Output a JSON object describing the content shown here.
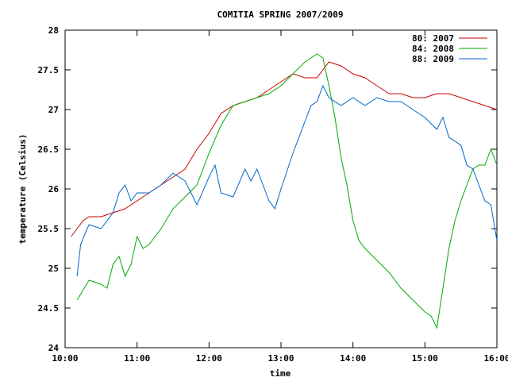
{
  "chart_data": {
    "type": "line",
    "title": "COMITIA SPRING 2007/2009",
    "xlabel": "time",
    "ylabel": "temperature (Celsius)",
    "xlim": [
      "10:00",
      "16:00"
    ],
    "ylim": [
      24,
      28
    ],
    "x_ticks": [
      "10:00",
      "11:00",
      "12:00",
      "13:00",
      "14:00",
      "15:00",
      "16:00"
    ],
    "y_ticks": [
      "24",
      "24.5",
      "25",
      "25.5",
      "26",
      "26.5",
      "27",
      "27.5",
      "28"
    ],
    "grid": false,
    "legend_position": "top-right",
    "series": [
      {
        "name": "80: 2007",
        "color": "#cc0000",
        "points": [
          [
            "10:05",
            25.4
          ],
          [
            "10:10",
            25.5
          ],
          [
            "10:15",
            25.6
          ],
          [
            "10:20",
            25.65
          ],
          [
            "10:30",
            25.65
          ],
          [
            "10:40",
            25.7
          ],
          [
            "10:50",
            25.75
          ],
          [
            "11:00",
            25.85
          ],
          [
            "11:10",
            25.95
          ],
          [
            "11:20",
            26.05
          ],
          [
            "11:30",
            26.15
          ],
          [
            "11:40",
            26.25
          ],
          [
            "11:50",
            26.5
          ],
          [
            "12:00",
            26.7
          ],
          [
            "12:10",
            26.95
          ],
          [
            "12:20",
            27.05
          ],
          [
            "12:30",
            27.1
          ],
          [
            "12:40",
            27.15
          ],
          [
            "12:50",
            27.25
          ],
          [
            "13:00",
            27.35
          ],
          [
            "13:10",
            27.45
          ],
          [
            "13:20",
            27.4
          ],
          [
            "13:30",
            27.4
          ],
          [
            "13:40",
            27.6
          ],
          [
            "13:50",
            27.55
          ],
          [
            "14:00",
            27.45
          ],
          [
            "14:10",
            27.4
          ],
          [
            "14:20",
            27.3
          ],
          [
            "14:30",
            27.2
          ],
          [
            "14:40",
            27.2
          ],
          [
            "14:50",
            27.15
          ],
          [
            "15:00",
            27.15
          ],
          [
            "15:10",
            27.2
          ],
          [
            "15:20",
            27.2
          ],
          [
            "15:30",
            27.15
          ],
          [
            "15:40",
            27.1
          ],
          [
            "15:50",
            27.05
          ],
          [
            "16:00",
            27.0
          ]
        ]
      },
      {
        "name": "84: 2008",
        "color": "#00aa00",
        "points": [
          [
            "10:10",
            24.6
          ],
          [
            "10:20",
            24.85
          ],
          [
            "10:30",
            24.8
          ],
          [
            "10:35",
            24.75
          ],
          [
            "10:40",
            25.05
          ],
          [
            "10:45",
            25.15
          ],
          [
            "10:50",
            24.9
          ],
          [
            "10:55",
            25.05
          ],
          [
            "11:00",
            25.4
          ],
          [
            "11:05",
            25.25
          ],
          [
            "11:10",
            25.3
          ],
          [
            "11:20",
            25.5
          ],
          [
            "11:30",
            25.75
          ],
          [
            "11:40",
            25.9
          ],
          [
            "11:50",
            26.05
          ],
          [
            "12:00",
            26.45
          ],
          [
            "12:10",
            26.8
          ],
          [
            "12:20",
            27.05
          ],
          [
            "12:30",
            27.1
          ],
          [
            "12:40",
            27.15
          ],
          [
            "12:50",
            27.2
          ],
          [
            "13:00",
            27.3
          ],
          [
            "13:10",
            27.45
          ],
          [
            "13:20",
            27.6
          ],
          [
            "13:30",
            27.7
          ],
          [
            "13:35",
            27.65
          ],
          [
            "13:40",
            27.3
          ],
          [
            "13:45",
            26.9
          ],
          [
            "13:50",
            26.4
          ],
          [
            "13:55",
            26.05
          ],
          [
            "14:00",
            25.6
          ],
          [
            "14:05",
            25.35
          ],
          [
            "14:10",
            25.25
          ],
          [
            "14:20",
            25.1
          ],
          [
            "14:30",
            24.95
          ],
          [
            "14:40",
            24.75
          ],
          [
            "14:50",
            24.6
          ],
          [
            "15:00",
            24.45
          ],
          [
            "15:05",
            24.4
          ],
          [
            "15:10",
            24.25
          ],
          [
            "15:15",
            24.75
          ],
          [
            "15:20",
            25.25
          ],
          [
            "15:25",
            25.6
          ],
          [
            "15:30",
            25.85
          ],
          [
            "15:35",
            26.05
          ],
          [
            "15:40",
            26.25
          ],
          [
            "15:45",
            26.3
          ],
          [
            "15:50",
            26.3
          ],
          [
            "15:55",
            26.5
          ],
          [
            "16:00",
            26.3
          ]
        ]
      },
      {
        "name": "88: 2009",
        "color": "#0066cc",
        "points": [
          [
            "10:10",
            24.9
          ],
          [
            "10:13",
            25.3
          ],
          [
            "10:17",
            25.45
          ],
          [
            "10:20",
            25.55
          ],
          [
            "10:30",
            25.5
          ],
          [
            "10:40",
            25.7
          ],
          [
            "10:45",
            25.95
          ],
          [
            "10:50",
            26.05
          ],
          [
            "10:55",
            25.85
          ],
          [
            "11:00",
            25.95
          ],
          [
            "11:10",
            25.95
          ],
          [
            "11:20",
            26.05
          ],
          [
            "11:30",
            26.2
          ],
          [
            "11:40",
            26.1
          ],
          [
            "11:50",
            25.8
          ],
          [
            "12:00",
            26.15
          ],
          [
            "12:05",
            26.3
          ],
          [
            "12:10",
            25.95
          ],
          [
            "12:20",
            25.9
          ],
          [
            "12:30",
            26.25
          ],
          [
            "12:35",
            26.1
          ],
          [
            "12:40",
            26.25
          ],
          [
            "12:45",
            26.05
          ],
          [
            "12:50",
            25.85
          ],
          [
            "12:55",
            25.75
          ],
          [
            "13:00",
            26.0
          ],
          [
            "13:10",
            26.45
          ],
          [
            "13:20",
            26.85
          ],
          [
            "13:25",
            27.05
          ],
          [
            "13:30",
            27.1
          ],
          [
            "13:35",
            27.3
          ],
          [
            "13:40",
            27.15
          ],
          [
            "13:50",
            27.05
          ],
          [
            "14:00",
            27.15
          ],
          [
            "14:10",
            27.05
          ],
          [
            "14:20",
            27.15
          ],
          [
            "14:30",
            27.1
          ],
          [
            "14:40",
            27.1
          ],
          [
            "14:50",
            27.0
          ],
          [
            "15:00",
            26.9
          ],
          [
            "15:10",
            26.75
          ],
          [
            "15:15",
            26.9
          ],
          [
            "15:20",
            26.65
          ],
          [
            "15:30",
            26.55
          ],
          [
            "15:35",
            26.3
          ],
          [
            "15:40",
            26.25
          ],
          [
            "15:45",
            26.05
          ],
          [
            "15:50",
            25.85
          ],
          [
            "15:55",
            25.8
          ],
          [
            "16:00",
            25.35
          ]
        ]
      }
    ]
  }
}
